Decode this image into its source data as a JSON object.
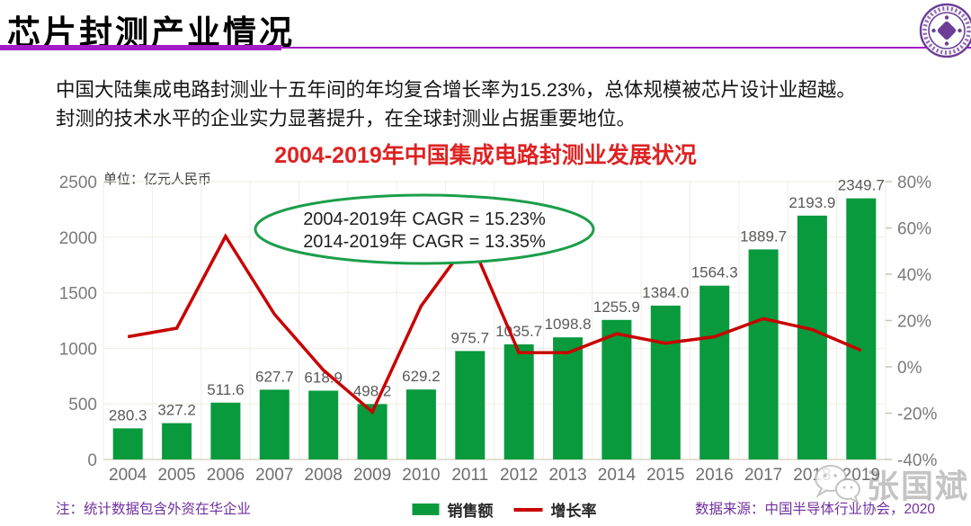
{
  "slide": {
    "title": "芯片封测产业情况",
    "colors": {
      "accent_purple": "#A41CC8",
      "note_purple": "#7030A0",
      "title_red": "#DE2323",
      "bar_green": "#089A3D",
      "line_red": "#C80000",
      "ellipse_green": "#1C9E4A"
    }
  },
  "intro": {
    "line1": "中国大陆集成电路封测业十五年间的年均复合增长率为15.23%，总体规模被芯片设计业超越。",
    "line2": "封测的技术水平的企业实力显著提升，在全球封测业占据重要地位。"
  },
  "chart": {
    "title": "2004-2019年中国集成电路封测业发展状况",
    "unit_label": "单位：亿元人民币",
    "annotation": {
      "line1": "2004-2019年 CAGR = 15.23%",
      "line2": "2014-2019年 CAGR = 13.35%"
    },
    "legend": {
      "sales": "销售额",
      "growth": "增长率"
    }
  },
  "chart_data": {
    "type": "bar+line",
    "title": "2004-2019年中国集成电路封测业发展状况",
    "categories": [
      "2004",
      "2005",
      "2006",
      "2007",
      "2008",
      "2009",
      "2010",
      "2011",
      "2012",
      "2013",
      "2014",
      "2015",
      "2016",
      "2017",
      "2018",
      "2019"
    ],
    "series": [
      {
        "name": "销售额",
        "type": "bar",
        "axis": "left",
        "color": "#089A3D",
        "values": [
          280.3,
          327.2,
          511.6,
          627.7,
          618.9,
          498.2,
          629.2,
          975.7,
          1035.7,
          1098.8,
          1255.9,
          1384.0,
          1564.3,
          1889.7,
          2193.9,
          2349.7
        ]
      },
      {
        "name": "增长率",
        "type": "line",
        "axis": "right",
        "color": "#C80000",
        "values": [
          13.0,
          16.7,
          56.4,
          22.7,
          -1.4,
          -19.5,
          26.3,
          55.1,
          6.1,
          6.1,
          14.3,
          10.2,
          13.0,
          20.8,
          16.1,
          7.1
        ]
      }
    ],
    "left_axis": {
      "label": "单位：亿元人民币",
      "ticks": [
        0,
        500,
        1000,
        1500,
        2000,
        2500
      ],
      "min": 0,
      "max": 2500
    },
    "right_axis": {
      "ticks": [
        -40,
        -20,
        0,
        20,
        40,
        60,
        80
      ],
      "min": -40,
      "max": 80,
      "suffix": "%"
    },
    "grid": true,
    "legend_position": "bottom"
  },
  "footer": {
    "note": "注：统计数据包含外资在华企业",
    "source": "数据来源：中国半导体行业协会，2020"
  },
  "watermark": {
    "text": "张国斌"
  }
}
